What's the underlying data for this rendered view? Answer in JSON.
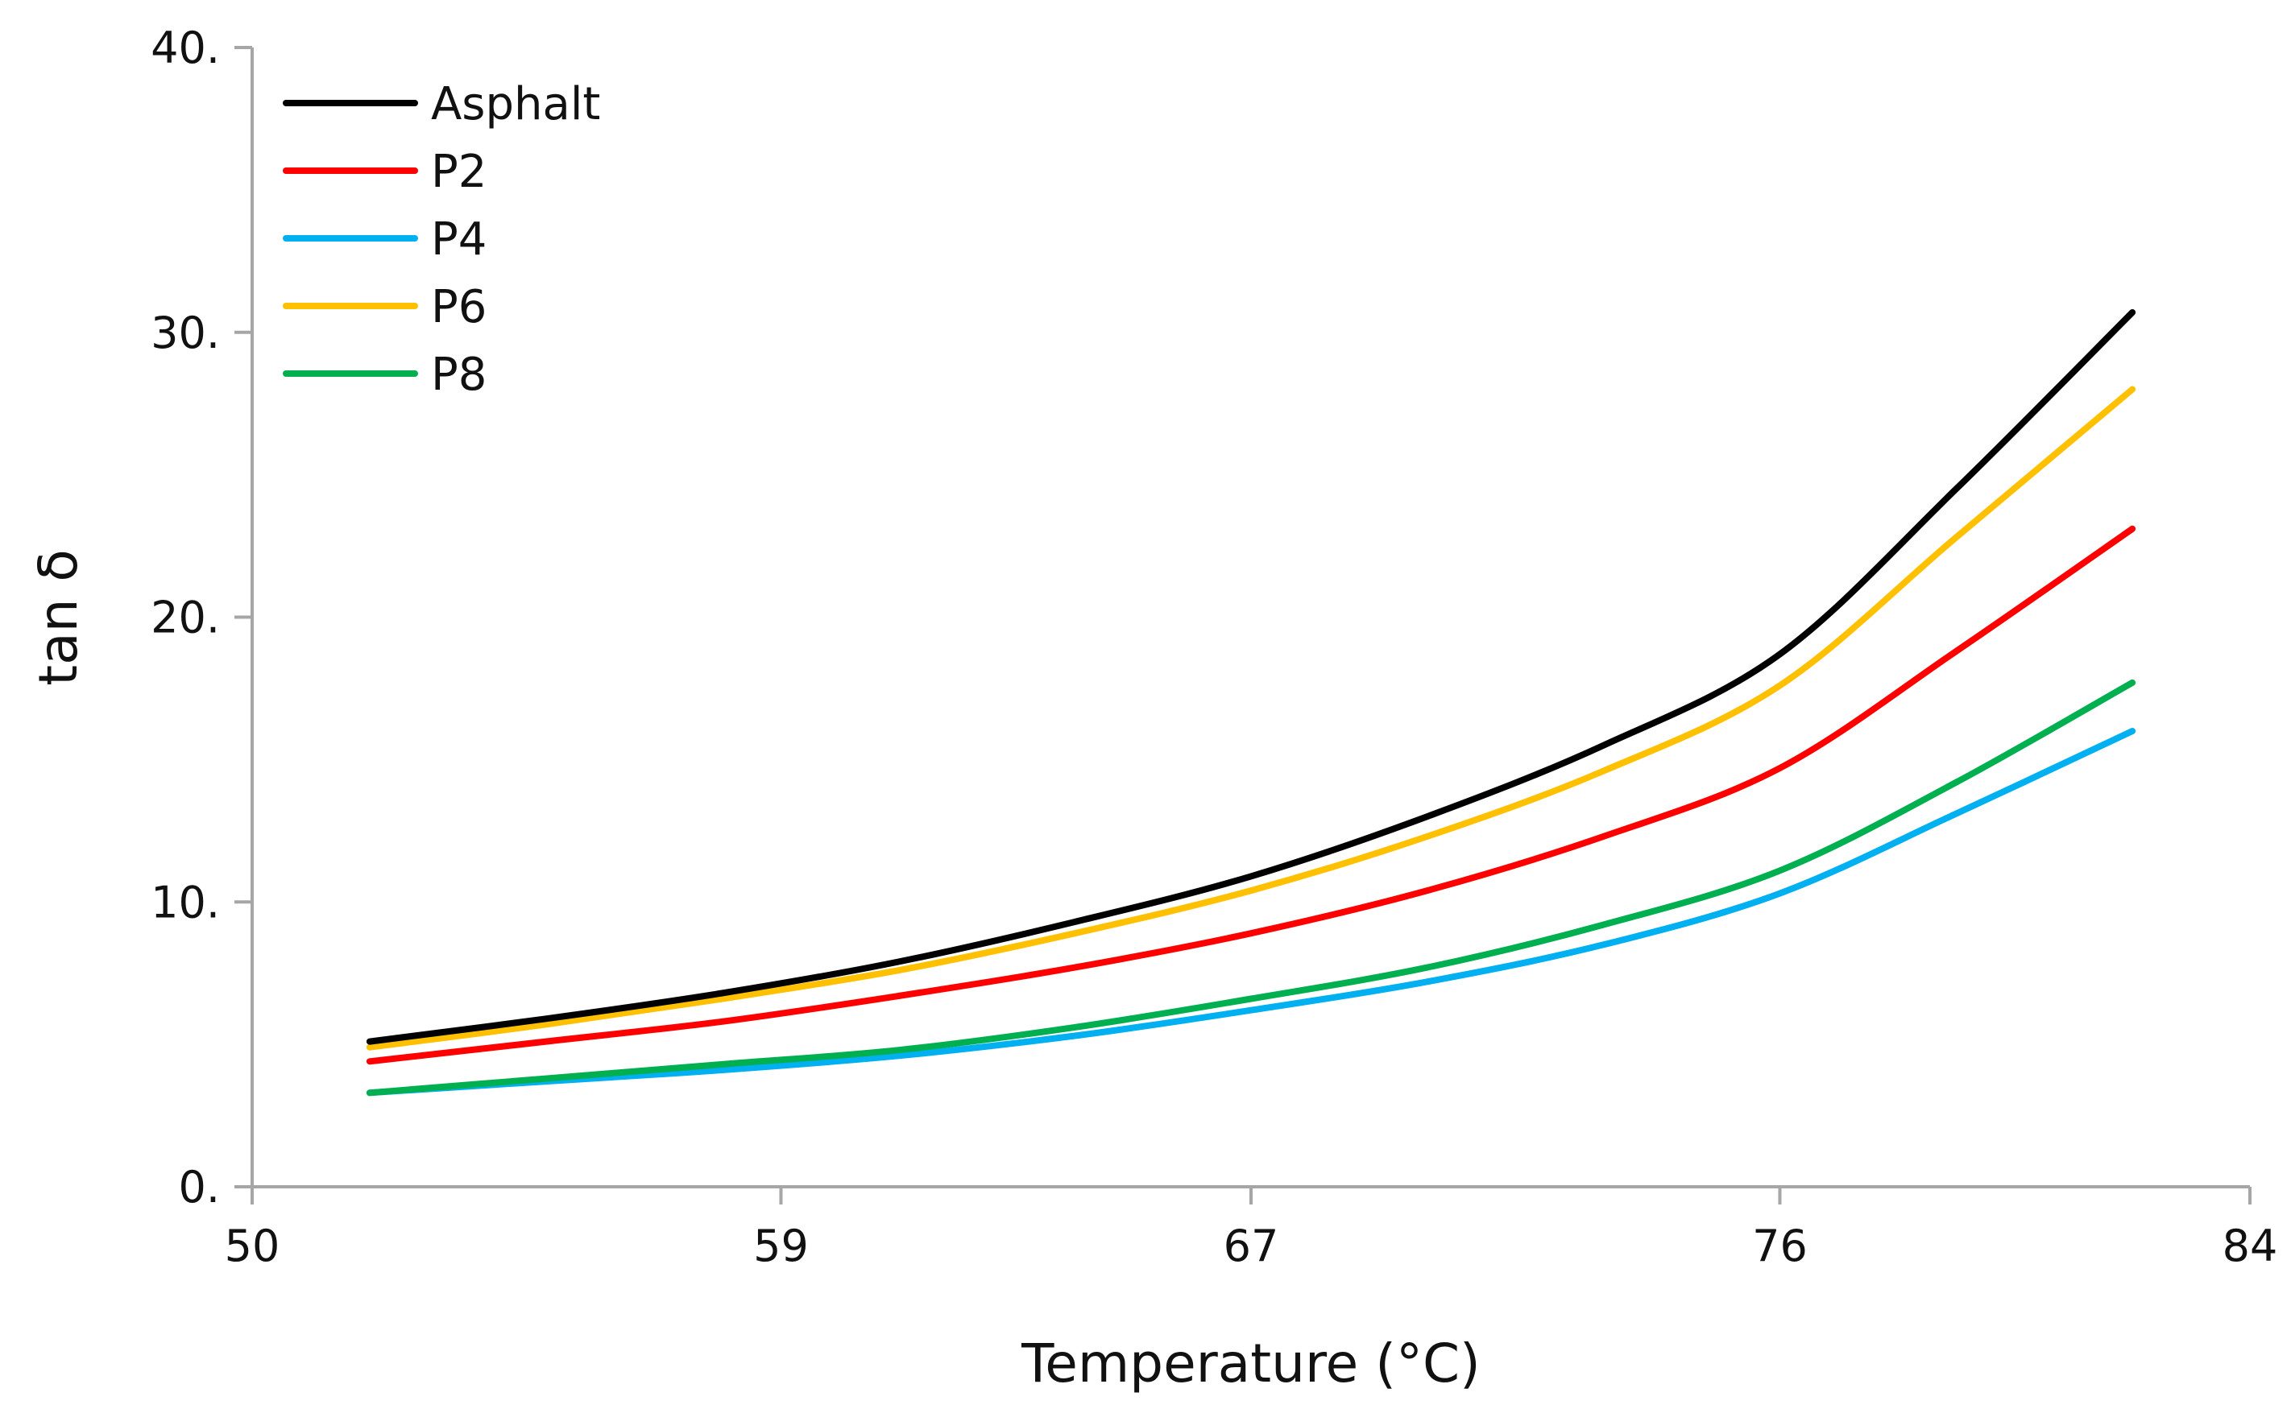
{
  "chart_data": {
    "type": "line",
    "title": "",
    "xlabel": "Temperature (°C)",
    "ylabel": "tan δ",
    "xlim": [
      50,
      84
    ],
    "ylim": [
      0,
      40
    ],
    "xticks": [
      50,
      59,
      67,
      76,
      84
    ],
    "xtick_labels": [
      "50",
      "59",
      "67",
      "76",
      "84"
    ],
    "yticks": [
      0,
      10,
      20,
      30,
      40
    ],
    "ytick_labels": [
      "0.",
      "10.",
      "20.",
      "30.",
      "40."
    ],
    "grid": false,
    "legend_position": "top-left",
    "x": [
      52,
      55,
      58,
      61,
      64,
      67,
      70,
      73,
      76,
      79,
      82
    ],
    "series": [
      {
        "name": "Asphalt",
        "color": "#000000",
        "values": [
          5.1,
          5.9,
          6.8,
          7.9,
          9.3,
          10.9,
          13.0,
          15.5,
          18.7,
          24.5,
          30.7
        ]
      },
      {
        "name": "P2",
        "color": "#ff0000",
        "values": [
          4.4,
          5.1,
          5.8,
          6.7,
          7.7,
          8.9,
          10.4,
          12.3,
          14.7,
          18.8,
          23.1
        ]
      },
      {
        "name": "P4",
        "color": "#00b0f0",
        "values": [
          3.3,
          3.7,
          4.1,
          4.6,
          5.3,
          6.2,
          7.2,
          8.5,
          10.3,
          13.1,
          16.0
        ]
      },
      {
        "name": "P6",
        "color": "#ffc000",
        "values": [
          4.9,
          5.7,
          6.6,
          7.6,
          8.9,
          10.4,
          12.3,
          14.6,
          17.6,
          22.8,
          28.0
        ]
      },
      {
        "name": "P8",
        "color": "#00b050",
        "values": [
          3.3,
          3.8,
          4.3,
          4.8,
          5.6,
          6.6,
          7.7,
          9.2,
          11.1,
          14.2,
          17.7
        ]
      }
    ]
  }
}
